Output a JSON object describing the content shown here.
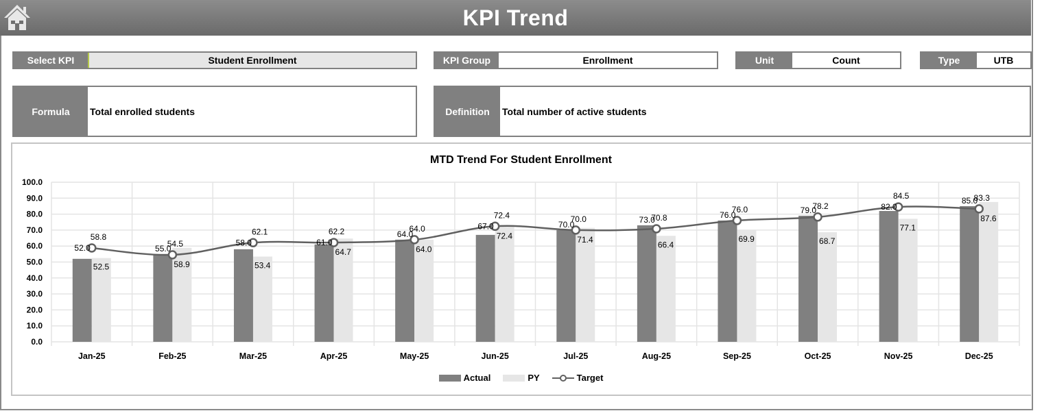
{
  "header": {
    "title": "KPI Trend",
    "home_icon": "home-icon"
  },
  "fields": {
    "select_kpi": {
      "label": "Select KPI",
      "value": "Student Enrollment"
    },
    "kpi_group": {
      "label": "KPI Group",
      "value": "Enrollment"
    },
    "unit": {
      "label": "Unit",
      "value": "Count"
    },
    "type": {
      "label": "Type",
      "value": "UTB"
    },
    "formula": {
      "label": "Formula",
      "value": "Total enrolled students"
    },
    "definition": {
      "label": "Definition",
      "value": "Total number of active students"
    }
  },
  "colors": {
    "header_top": "#8c8c8c",
    "header_bottom": "#6a6a6a",
    "label_bg": "#808080",
    "actual": "#808080",
    "py": "#e6e6e6",
    "target_line": "#606060",
    "gridline": "#e4e4e4"
  },
  "chart_data": {
    "type": "bar",
    "title": "MTD Trend For Student Enrollment",
    "xlabel": "",
    "ylabel": "",
    "ylim": [
      0,
      100
    ],
    "yticks": [
      "0.0",
      "10.0",
      "20.0",
      "30.0",
      "40.0",
      "50.0",
      "60.0",
      "70.0",
      "80.0",
      "90.0",
      "100.0"
    ],
    "grid": true,
    "legend_position": "bottom",
    "categories": [
      "Jan-25",
      "Feb-25",
      "Mar-25",
      "Apr-25",
      "May-25",
      "Jun-25",
      "Jul-25",
      "Aug-25",
      "Sep-25",
      "Oct-25",
      "Nov-25",
      "Dec-25"
    ],
    "series": [
      {
        "name": "Actual",
        "kind": "bar",
        "values": [
          52.0,
          55.0,
          58.0,
          61.0,
          64.0,
          67.0,
          70.0,
          73.0,
          76.0,
          79.0,
          82.0,
          85.0
        ]
      },
      {
        "name": "PY",
        "kind": "bar",
        "values": [
          52.5,
          58.9,
          53.4,
          64.7,
          64.0,
          72.4,
          71.4,
          66.4,
          69.9,
          68.7,
          77.1,
          87.6
        ]
      },
      {
        "name": "Target",
        "kind": "line",
        "values": [
          58.8,
          54.5,
          62.1,
          62.2,
          64.0,
          72.4,
          70.0,
          70.8,
          76.0,
          78.2,
          84.5,
          83.3
        ]
      }
    ]
  }
}
